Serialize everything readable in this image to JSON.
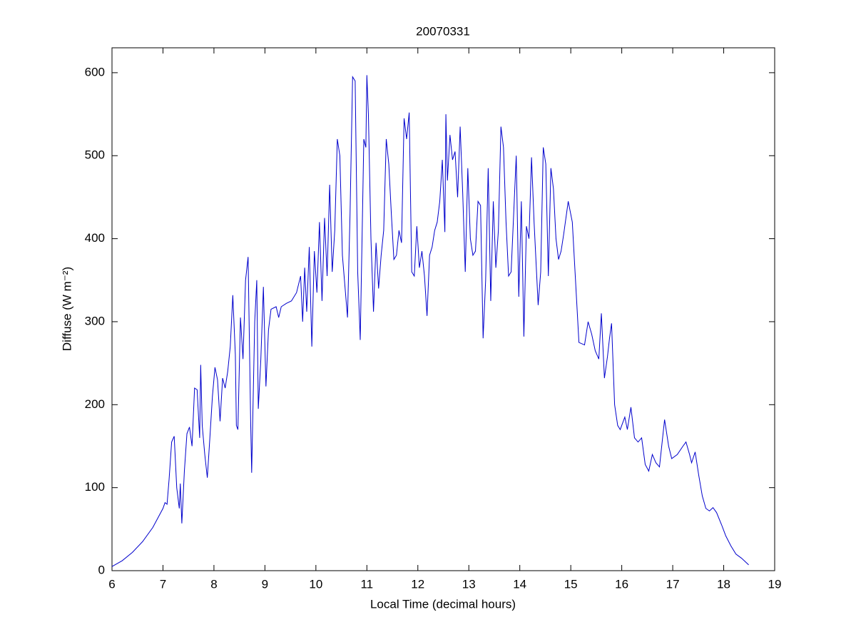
{
  "chart_data": {
    "type": "line",
    "title": "20070331",
    "xlabel": "Local Time (decimal hours)",
    "ylabel": "Diffuse (W m⁻²)",
    "xlim": [
      6,
      19
    ],
    "ylim": [
      0,
      630
    ],
    "xticks": [
      6,
      7,
      8,
      9,
      10,
      11,
      12,
      13,
      14,
      15,
      16,
      17,
      18,
      19
    ],
    "yticks": [
      0,
      100,
      200,
      300,
      400,
      500,
      600
    ],
    "grid": false,
    "series": [
      {
        "color": "#0000cc",
        "x": [
          6.0,
          6.2,
          6.4,
          6.6,
          6.8,
          7.0,
          7.04,
          7.08,
          7.12,
          7.17,
          7.22,
          7.27,
          7.32,
          7.34,
          7.37,
          7.42,
          7.47,
          7.52,
          7.57,
          7.62,
          7.67,
          7.72,
          7.74,
          7.77,
          7.82,
          7.87,
          7.92,
          7.97,
          8.02,
          8.07,
          8.12,
          8.17,
          8.22,
          8.27,
          8.32,
          8.37,
          8.42,
          8.44,
          8.47,
          8.52,
          8.57,
          8.62,
          8.67,
          8.72,
          8.74,
          8.8,
          8.84,
          8.87,
          8.92,
          8.97,
          9.02,
          9.07,
          9.12,
          9.22,
          9.27,
          9.32,
          9.42,
          9.52,
          9.62,
          9.7,
          9.74,
          9.78,
          9.82,
          9.87,
          9.92,
          9.97,
          10.02,
          10.07,
          10.12,
          10.17,
          10.22,
          10.27,
          10.32,
          10.37,
          10.42,
          10.47,
          10.52,
          10.62,
          10.67,
          10.72,
          10.77,
          10.82,
          10.87,
          10.92,
          10.94,
          10.98,
          11.0,
          11.03,
          11.08,
          11.13,
          11.18,
          11.23,
          11.28,
          11.33,
          11.38,
          11.43,
          11.48,
          11.53,
          11.58,
          11.63,
          11.68,
          11.73,
          11.78,
          11.83,
          11.88,
          11.93,
          11.98,
          12.03,
          12.08,
          12.13,
          12.18,
          12.23,
          12.28,
          12.33,
          12.38,
          12.43,
          12.48,
          12.53,
          12.55,
          12.58,
          12.63,
          12.68,
          12.73,
          12.78,
          12.83,
          12.88,
          12.93,
          12.98,
          13.03,
          13.08,
          13.13,
          13.18,
          13.23,
          13.28,
          13.33,
          13.38,
          13.43,
          13.48,
          13.53,
          13.58,
          13.63,
          13.68,
          13.73,
          13.78,
          13.83,
          13.93,
          13.98,
          14.03,
          14.08,
          14.13,
          14.18,
          14.23,
          14.28,
          14.36,
          14.41,
          14.46,
          14.51,
          14.56,
          14.61,
          14.66,
          14.71,
          14.76,
          14.81,
          14.86,
          14.95,
          15.03,
          15.16,
          15.27,
          15.34,
          15.41,
          15.48,
          15.55,
          15.6,
          15.66,
          15.72,
          15.76,
          15.8,
          15.86,
          15.92,
          15.97,
          16.06,
          16.11,
          16.18,
          16.25,
          16.32,
          16.39,
          16.46,
          16.53,
          16.6,
          16.67,
          16.74,
          16.84,
          16.92,
          16.98,
          17.09,
          17.2,
          17.26,
          17.33,
          17.37,
          17.44,
          17.51,
          17.58,
          17.65,
          17.72,
          17.79,
          17.86,
          17.96,
          18.04,
          18.14,
          18.24,
          18.35,
          18.49
        ],
        "values": [
          5,
          12,
          22,
          35,
          52,
          75,
          82,
          80,
          110,
          155,
          162,
          100,
          75,
          105,
          57,
          120,
          165,
          173,
          150,
          220,
          218,
          160,
          248,
          175,
          140,
          112,
          160,
          210,
          245,
          230,
          180,
          232,
          220,
          240,
          270,
          332,
          260,
          175,
          170,
          305,
          255,
          350,
          378,
          180,
          118,
          300,
          350,
          195,
          255,
          342,
          222,
          290,
          315,
          318,
          305,
          318,
          322,
          325,
          335,
          355,
          300,
          365,
          312,
          390,
          270,
          385,
          335,
          420,
          325,
          425,
          355,
          465,
          360,
          410,
          520,
          500,
          380,
          305,
          430,
          595,
          590,
          360,
          278,
          450,
          520,
          510,
          597,
          550,
          400,
          312,
          395,
          340,
          380,
          410,
          520,
          490,
          430,
          375,
          380,
          410,
          395,
          545,
          520,
          552,
          360,
          355,
          415,
          365,
          385,
          355,
          307,
          380,
          390,
          410,
          420,
          445,
          495,
          408,
          550,
          470,
          525,
          495,
          505,
          450,
          535,
          455,
          360,
          485,
          400,
          380,
          385,
          445,
          440,
          280,
          350,
          485,
          325,
          445,
          365,
          410,
          535,
          510,
          420,
          355,
          360,
          500,
          330,
          445,
          282,
          415,
          400,
          498,
          420,
          320,
          360,
          510,
          490,
          355,
          485,
          460,
          400,
          375,
          385,
          405,
          445,
          420,
          275,
          272,
          300,
          285,
          265,
          255,
          310,
          232,
          258,
          280,
          298,
          200,
          175,
          170,
          185,
          170,
          197,
          160,
          155,
          160,
          128,
          120,
          140,
          130,
          125,
          182,
          150,
          135,
          140,
          150,
          155,
          140,
          130,
          143,
          115,
          90,
          75,
          72,
          76,
          70,
          55,
          42,
          30,
          20,
          15,
          7
        ]
      }
    ]
  }
}
